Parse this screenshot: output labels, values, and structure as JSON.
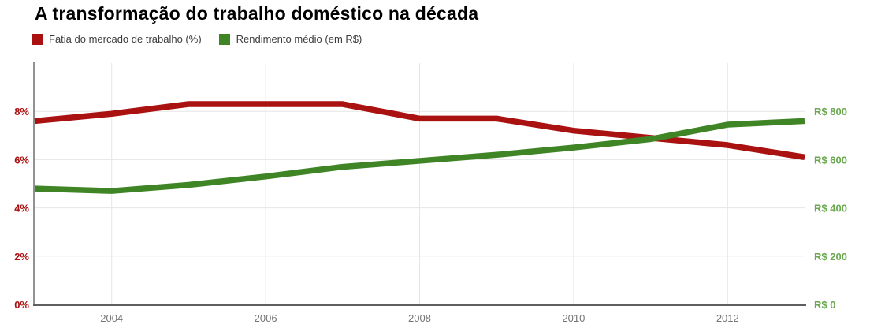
{
  "title": "A transformação do trabalho doméstico na década",
  "legend": [
    {
      "label": "Fatia do mercado de trabalho (%)",
      "color": "#aa1111"
    },
    {
      "label": "Rendimento médio (em R$)",
      "color": "#3f8526"
    }
  ],
  "chart_data": {
    "type": "line",
    "title": "A transformação do trabalho doméstico na década",
    "x": [
      2003,
      2004,
      2005,
      2006,
      2007,
      2008,
      2009,
      2010,
      2011,
      2012,
      2013
    ],
    "series": [
      {
        "name": "Fatia do mercado de trabalho (%)",
        "axis": "left",
        "color": "#aa1111",
        "values": [
          7.6,
          7.9,
          8.3,
          8.3,
          8.3,
          7.7,
          7.7,
          7.2,
          6.9,
          6.6,
          6.1
        ]
      },
      {
        "name": "Rendimento médio (em R$)",
        "axis": "right",
        "color": "#3f8526",
        "values": [
          480,
          470,
          495,
          530,
          570,
          595,
          620,
          650,
          685,
          745,
          760
        ]
      }
    ],
    "left_axis": {
      "min": 0,
      "max": 10,
      "label_color": "#aa1111",
      "ticks": [
        {
          "value": 0,
          "label": "0%"
        },
        {
          "value": 2,
          "label": "2%"
        },
        {
          "value": 4,
          "label": "4%"
        },
        {
          "value": 6,
          "label": "6%"
        },
        {
          "value": 8,
          "label": "8%"
        }
      ]
    },
    "right_axis": {
      "min": 0,
      "max": 1000,
      "label_color": "#6aa84f",
      "ticks": [
        {
          "value": 0,
          "label": "R$ 0"
        },
        {
          "value": 200,
          "label": "R$ 200"
        },
        {
          "value": 400,
          "label": "R$ 400"
        },
        {
          "value": 600,
          "label": "R$ 600"
        },
        {
          "value": 800,
          "label": "R$ 800"
        }
      ]
    },
    "x_axis": {
      "min": 2003,
      "max": 2013,
      "label_color": "#757575",
      "ticks": [
        {
          "value": 2004,
          "label": "2004"
        },
        {
          "value": 2006,
          "label": "2006"
        },
        {
          "value": 2008,
          "label": "2008"
        },
        {
          "value": 2010,
          "label": "2010"
        },
        {
          "value": 2012,
          "label": "2012"
        }
      ]
    },
    "grid": true,
    "gridline_color": "#e6e6e6",
    "baseline_color": "#5f5f5f",
    "axisline_color": "#6e6e6e",
    "legend_position": "top-left"
  }
}
